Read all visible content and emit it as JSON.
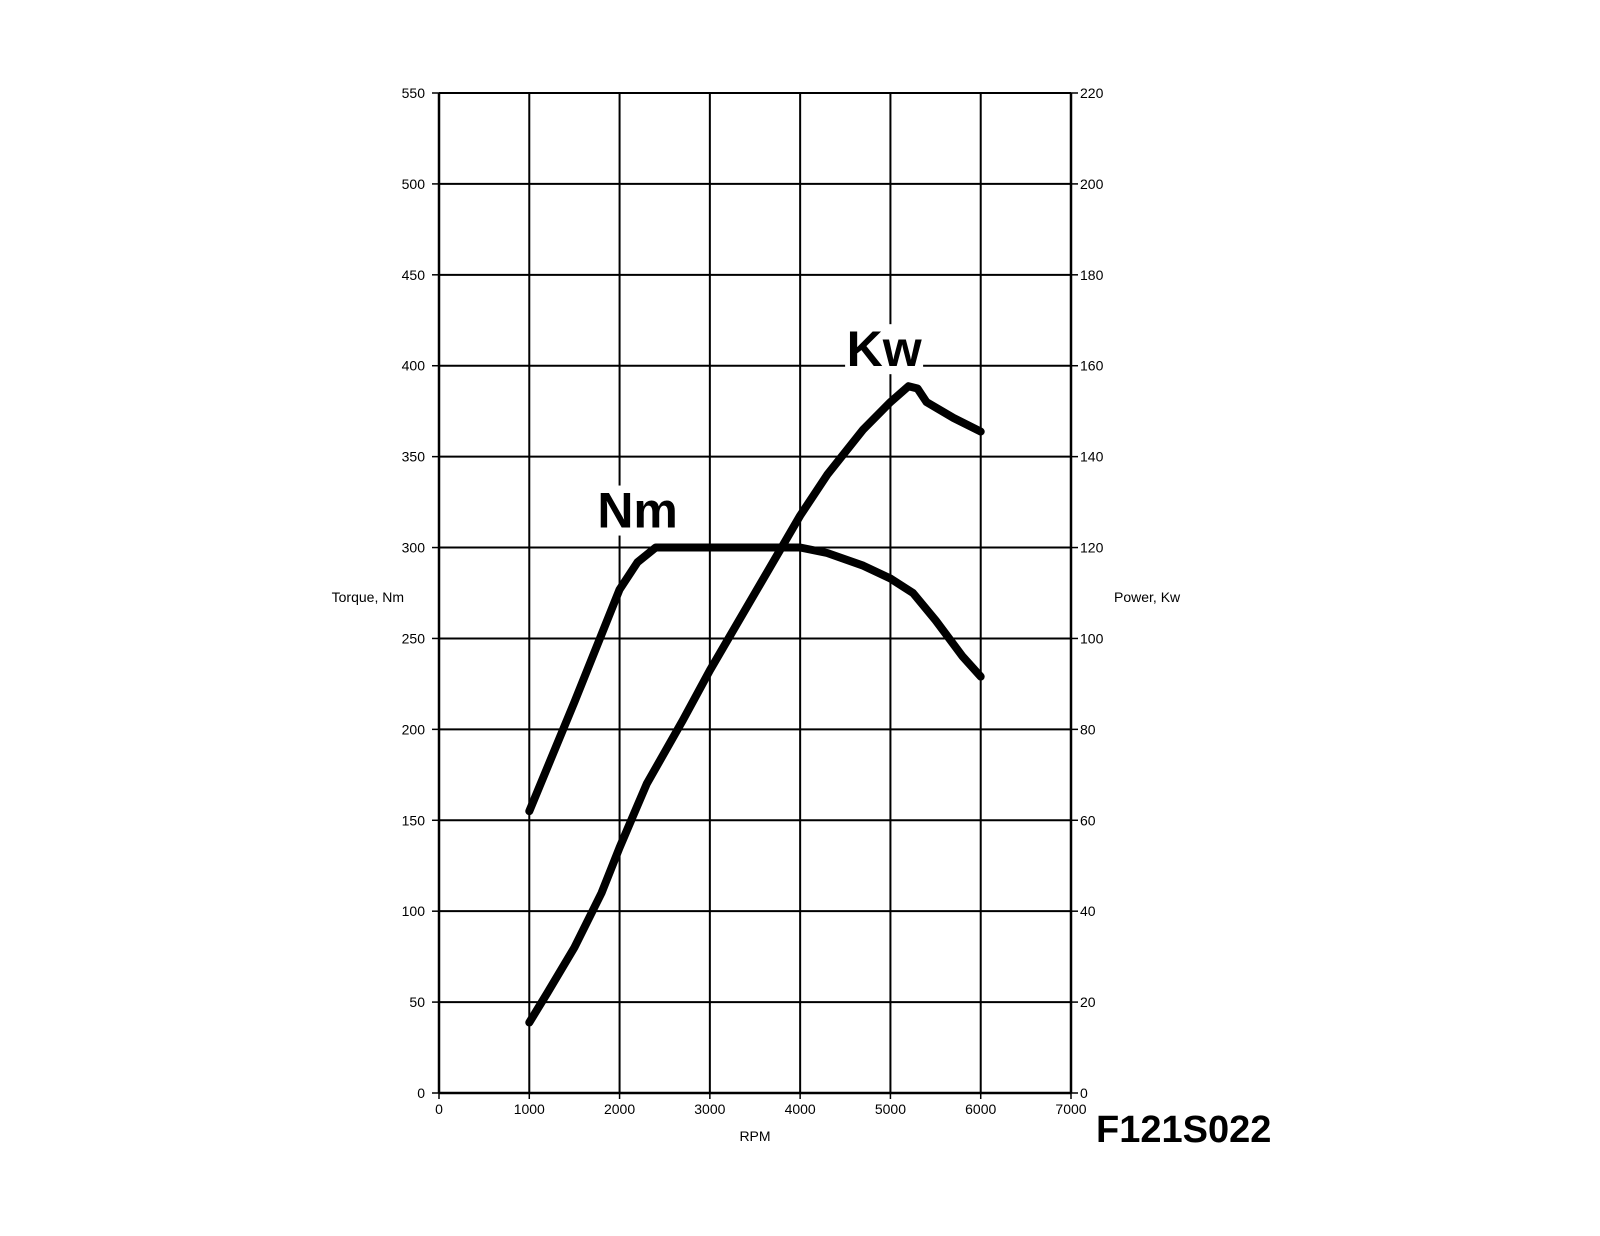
{
  "chart_data": {
    "type": "line",
    "title": "",
    "xlabel": "RPM",
    "ylabel_left": "Torque, Nm",
    "ylabel_right": "Power, Kw",
    "xlim": [
      0,
      7000
    ],
    "ylim_left": [
      0,
      550
    ],
    "ylim_right": [
      0,
      220
    ],
    "x_ticks": [
      "0",
      "1000",
      "2000",
      "3000",
      "4000",
      "5000",
      "6000",
      "7000"
    ],
    "y_left_ticks": [
      "0",
      "50",
      "100",
      "150",
      "200",
      "250",
      "300",
      "350",
      "400",
      "450",
      "500",
      "550"
    ],
    "y_right_ticks": [
      "0",
      "20",
      "40",
      "60",
      "80",
      "100",
      "120",
      "140",
      "160",
      "180",
      "200",
      "220"
    ],
    "grid": true,
    "series": [
      {
        "name": "Nm",
        "axis": "left",
        "x": [
          1000,
          1500,
          2000,
          2200,
          2400,
          3000,
          3500,
          4000,
          4300,
          4700,
          5000,
          5250,
          5500,
          5800,
          6000
        ],
        "y": [
          155,
          215,
          277,
          292,
          300,
          300,
          300,
          300,
          297,
          290,
          283,
          275,
          260,
          240,
          229
        ]
      },
      {
        "name": "Kw",
        "axis": "right",
        "x": [
          1000,
          1200,
          1500,
          1800,
          2000,
          2300,
          2700,
          3000,
          3500,
          4000,
          4300,
          4700,
          5000,
          5200,
          5300,
          5400,
          5700,
          6000
        ],
        "y": [
          15.5,
          22,
          32,
          44,
          54,
          68,
          82,
          93,
          110,
          127,
          136,
          146,
          152,
          155.5,
          155,
          152,
          148.5,
          145.5
        ]
      }
    ],
    "annotations": [
      {
        "text": "Nm",
        "series": "Nm"
      },
      {
        "text": "Kw",
        "series": "Kw"
      }
    ]
  },
  "figure_code": "F121S022"
}
